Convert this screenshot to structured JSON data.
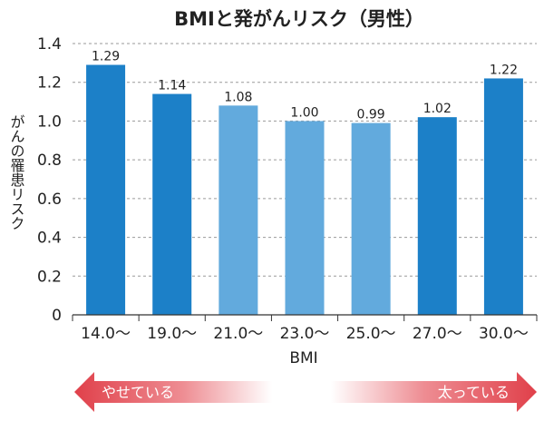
{
  "chart_data": {
    "type": "bar",
    "title": "BMIと発がんリスク（男性）",
    "xlabel": "BMI",
    "ylabel": "がんの罹患リスク",
    "ylim": [
      0,
      1.4
    ],
    "yticks": [
      "0",
      "0.2",
      "0.4",
      "0.6",
      "0.8",
      "1.0",
      "1.2",
      "1.4"
    ],
    "grid": "horizontal dashed",
    "categories": [
      "14.0〜",
      "19.0〜",
      "21.0〜",
      "23.0〜",
      "25.0〜",
      "27.0〜",
      "30.0〜"
    ],
    "values": [
      1.29,
      1.14,
      1.08,
      1.0,
      0.99,
      1.02,
      1.22
    ],
    "data_labels": [
      "1.29",
      "1.14",
      "1.08",
      "1.00",
      "0.99",
      "1.02",
      "1.22"
    ],
    "bar_colors": [
      "#1c80c8",
      "#1c80c8",
      "#62aadd",
      "#62aadd",
      "#62aadd",
      "#1c80c8",
      "#1c80c8"
    ]
  },
  "annotations": {
    "left_arrow": "やせている",
    "right_arrow": "太っている",
    "arrow_color": "#e0404a"
  }
}
